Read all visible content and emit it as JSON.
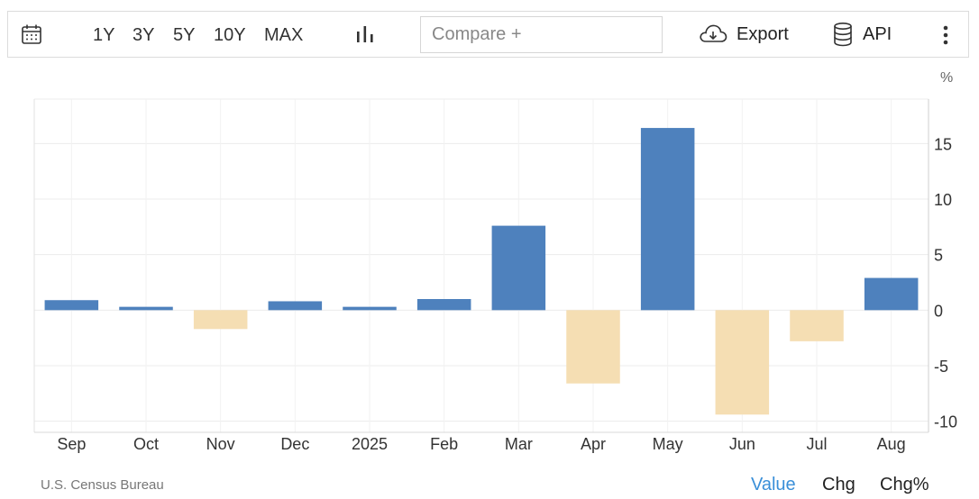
{
  "toolbar": {
    "ranges": [
      "1Y",
      "3Y",
      "5Y",
      "10Y",
      "MAX"
    ],
    "compare_placeholder": "Compare +",
    "export_label": "Export",
    "api_label": "API",
    "icons": {
      "calendar": "calendar-icon",
      "chart_type": "bar-chart-icon",
      "export": "cloud-download-icon",
      "api": "database-icon",
      "more": "more-vertical-icon"
    }
  },
  "unit_label": "%",
  "source": "U.S. Census Bureau",
  "view_modes": [
    "Value",
    "Chg",
    "Chg%"
  ],
  "active_view_mode": "Value",
  "colors": {
    "positive": "#4e81bd",
    "negative": "#f5deb3",
    "active_mode": "#3a8fd8",
    "grid": "#ececec"
  },
  "chart_data": {
    "type": "bar",
    "categories": [
      "Sep",
      "Oct",
      "Nov",
      "Dec",
      "2025",
      "Feb",
      "Mar",
      "Apr",
      "May",
      "Jun",
      "Jul",
      "Aug"
    ],
    "values": [
      0.9,
      0.3,
      -1.7,
      0.8,
      0.3,
      1.0,
      7.6,
      -6.6,
      16.4,
      -9.4,
      -2.8,
      2.9
    ],
    "ylim": [
      -11,
      19
    ],
    "yticks": [
      -10,
      -5,
      0,
      5,
      10,
      15
    ],
    "ytick_labels": [
      "-10",
      "-5",
      "0",
      "5",
      "10",
      "15"
    ],
    "y_axis_side": "right",
    "grid": true,
    "title": "",
    "xlabel": "",
    "ylabel": ""
  }
}
